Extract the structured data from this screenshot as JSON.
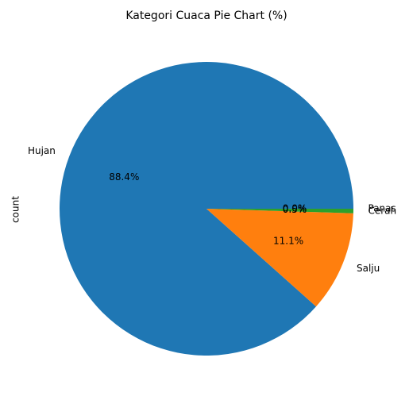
{
  "chart_data": {
    "type": "pie",
    "title": "Kategori Cuaca Pie Chart (%)",
    "ylabel": "count",
    "labels": [
      "Hujan",
      "Salju",
      "Cerah",
      "Panas"
    ],
    "values": [
      88.4,
      11.1,
      0.5,
      0.0
    ],
    "percent_labels": [
      "88.4%",
      "11.1%",
      "0.5%",
      "0.0%"
    ],
    "colors": [
      "#1f77b4",
      "#ff7f0e",
      "#2ca02c",
      "#d62728"
    ],
    "start_angle_deg": 0,
    "direction": "counterclockwise",
    "legend": "none"
  }
}
